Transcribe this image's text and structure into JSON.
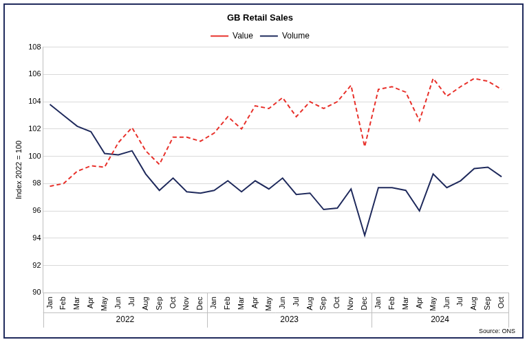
{
  "chart_data": {
    "type": "line",
    "title": "GB Retail Sales",
    "y_label": "Index 2022 = 100",
    "source": "Source: ONS",
    "categories": [
      "Jan",
      "Feb",
      "Mar",
      "Apr",
      "May",
      "Jun",
      "Jul",
      "Aug",
      "Sep",
      "Oct",
      "Nov",
      "Dec",
      "Jan",
      "Feb",
      "Mar",
      "Apr",
      "May",
      "Jun",
      "Jul",
      "Aug",
      "Sep",
      "Oct",
      "Nov",
      "Dec",
      "Jan",
      "Feb",
      "Mar",
      "Apr",
      "May",
      "Jun",
      "Jul",
      "Aug",
      "Sep",
      "Oct"
    ],
    "groups": [
      {
        "label": "2022",
        "span": 12
      },
      {
        "label": "2023",
        "span": 12
      },
      {
        "label": "2024",
        "span": 10
      }
    ],
    "series": [
      {
        "name": "Value",
        "color": "#e8302a",
        "line_style": "dashed",
        "marker": "none",
        "values": [
          97.8,
          98.0,
          98.9,
          99.3,
          99.2,
          101.0,
          102.1,
          100.4,
          99.4,
          101.4,
          101.4,
          101.1,
          101.7,
          102.9,
          102.0,
          103.7,
          103.5,
          104.3,
          102.9,
          104.0,
          103.5,
          104.0,
          105.2,
          100.7,
          104.9,
          105.1,
          104.7,
          102.6,
          105.7,
          104.4,
          105.1,
          105.7,
          105.5,
          104.9
        ]
      },
      {
        "name": "Volume",
        "color": "#1f2a5c",
        "line_style": "solid",
        "marker": "none",
        "values": [
          103.8,
          103.0,
          102.2,
          101.8,
          100.2,
          100.1,
          100.4,
          98.7,
          97.5,
          98.4,
          97.4,
          97.3,
          97.5,
          98.2,
          97.4,
          98.2,
          97.6,
          98.4,
          97.2,
          97.3,
          96.1,
          96.2,
          97.6,
          94.2,
          97.7,
          97.7,
          97.5,
          96.0,
          98.7,
          97.7,
          98.2,
          99.1,
          99.2,
          98.5
        ]
      }
    ],
    "ylim": [
      90,
      108
    ],
    "yticks": [
      90,
      92,
      94,
      96,
      98,
      100,
      102,
      104,
      106,
      108
    ],
    "grid": true,
    "legend": "top"
  }
}
